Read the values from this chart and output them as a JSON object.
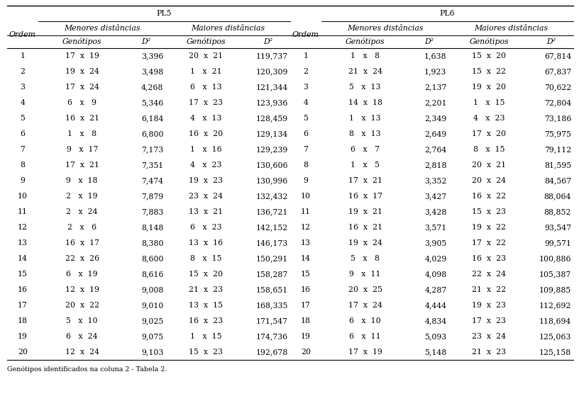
{
  "title_pl5": "PL5",
  "title_pl6": "PL6",
  "header1": "Menores distâncias",
  "header2": "Maiores distâncias",
  "col_ordem": "Ordem",
  "col_genotipos": "Genótipos",
  "col_d2": "D²",
  "pl5_data": [
    [
      1,
      "17  x  19",
      "3,396",
      "20  x  21",
      "119,737"
    ],
    [
      2,
      "19  x  24",
      "3,498",
      "1   x  21",
      "120,309"
    ],
    [
      3,
      "17  x  24",
      "4,268",
      "6   x  13",
      "121,344"
    ],
    [
      4,
      "6   x   9",
      "5,346",
      "17  x  23",
      "123,936"
    ],
    [
      5,
      "16  x  21",
      "6,184",
      "4   x  13",
      "128,459"
    ],
    [
      6,
      "1   x   8",
      "6,800",
      "16  x  20",
      "129,134"
    ],
    [
      7,
      "9   x  17",
      "7,173",
      "1   x  16",
      "129,239"
    ],
    [
      8,
      "17  x  21",
      "7,351",
      "4   x  23",
      "130,606"
    ],
    [
      9,
      "9   x  18",
      "7,474",
      "19  x  23",
      "130,996"
    ],
    [
      10,
      "2   x  19",
      "7,879",
      "23  x  24",
      "132,432"
    ],
    [
      11,
      "2   x  24",
      "7,883",
      "13  x  21",
      "136,721"
    ],
    [
      12,
      "2   x   6",
      "8,148",
      "6   x  23",
      "142,152"
    ],
    [
      13,
      "16  x  17",
      "8,380",
      "13  x  16",
      "146,173"
    ],
    [
      14,
      "22  x  26",
      "8,600",
      "8   x  15",
      "150,291"
    ],
    [
      15,
      "6   x  19",
      "8,616",
      "15  x  20",
      "158,287"
    ],
    [
      16,
      "12  x  19",
      "9,008",
      "21  x  23",
      "158,651"
    ],
    [
      17,
      "20  x  22",
      "9,010",
      "13  x  15",
      "168,335"
    ],
    [
      18,
      "5   x  10",
      "9,025",
      "16  x  23",
      "171,547"
    ],
    [
      19,
      "6   x  24",
      "9,075",
      "1   x  15",
      "174,736"
    ],
    [
      20,
      "12  x  24",
      "9,103",
      "15  x  23",
      "192,678"
    ]
  ],
  "pl6_data": [
    [
      1,
      "1   x   8",
      "1,638",
      "15  x  20",
      "67,814"
    ],
    [
      2,
      "21  x  24",
      "1,923",
      "15  x  22",
      "67,837"
    ],
    [
      3,
      "5   x  13",
      "2,137",
      "19  x  20",
      "70,622"
    ],
    [
      4,
      "14  x  18",
      "2,201",
      "1   x  15",
      "72,804"
    ],
    [
      5,
      "1   x  13",
      "2,349",
      "4   x  23",
      "73,186"
    ],
    [
      6,
      "8   x  13",
      "2,649",
      "17  x  20",
      "75,975"
    ],
    [
      7,
      "6   x   7",
      "2,764",
      "8   x  15",
      "79,112"
    ],
    [
      8,
      "1   x   5",
      "2,818",
      "20  x  21",
      "81,595"
    ],
    [
      9,
      "17  x  21",
      "3,352",
      "20  x  24",
      "84,567"
    ],
    [
      10,
      "16  x  17",
      "3,427",
      "16  x  22",
      "88,064"
    ],
    [
      11,
      "19  x  21",
      "3,428",
      "15  x  23",
      "88,852"
    ],
    [
      12,
      "16  x  21",
      "3,571",
      "19  x  22",
      "93,547"
    ],
    [
      13,
      "19  x  24",
      "3,905",
      "17  x  22",
      "99,571"
    ],
    [
      14,
      "5   x   8",
      "4,029",
      "16  x  23",
      "100,886"
    ],
    [
      15,
      "9   x  11",
      "4,098",
      "22  x  24",
      "105,387"
    ],
    [
      16,
      "20  x  25",
      "4,287",
      "21  x  22",
      "109,885"
    ],
    [
      17,
      "17  x  24",
      "4,444",
      "19  x  23",
      "112,692"
    ],
    [
      18,
      "6   x  10",
      "4,834",
      "17  x  23",
      "118,694"
    ],
    [
      19,
      "6   x  11",
      "5,093",
      "23  x  24",
      "125,063"
    ],
    [
      20,
      "17  x  19",
      "5,148",
      "21  x  23",
      "125,158"
    ]
  ],
  "bg_color": "#ffffff",
  "text_color": "#000000",
  "footnote_text": "Genótipos identificados na coluna 2 - Tabela 2."
}
